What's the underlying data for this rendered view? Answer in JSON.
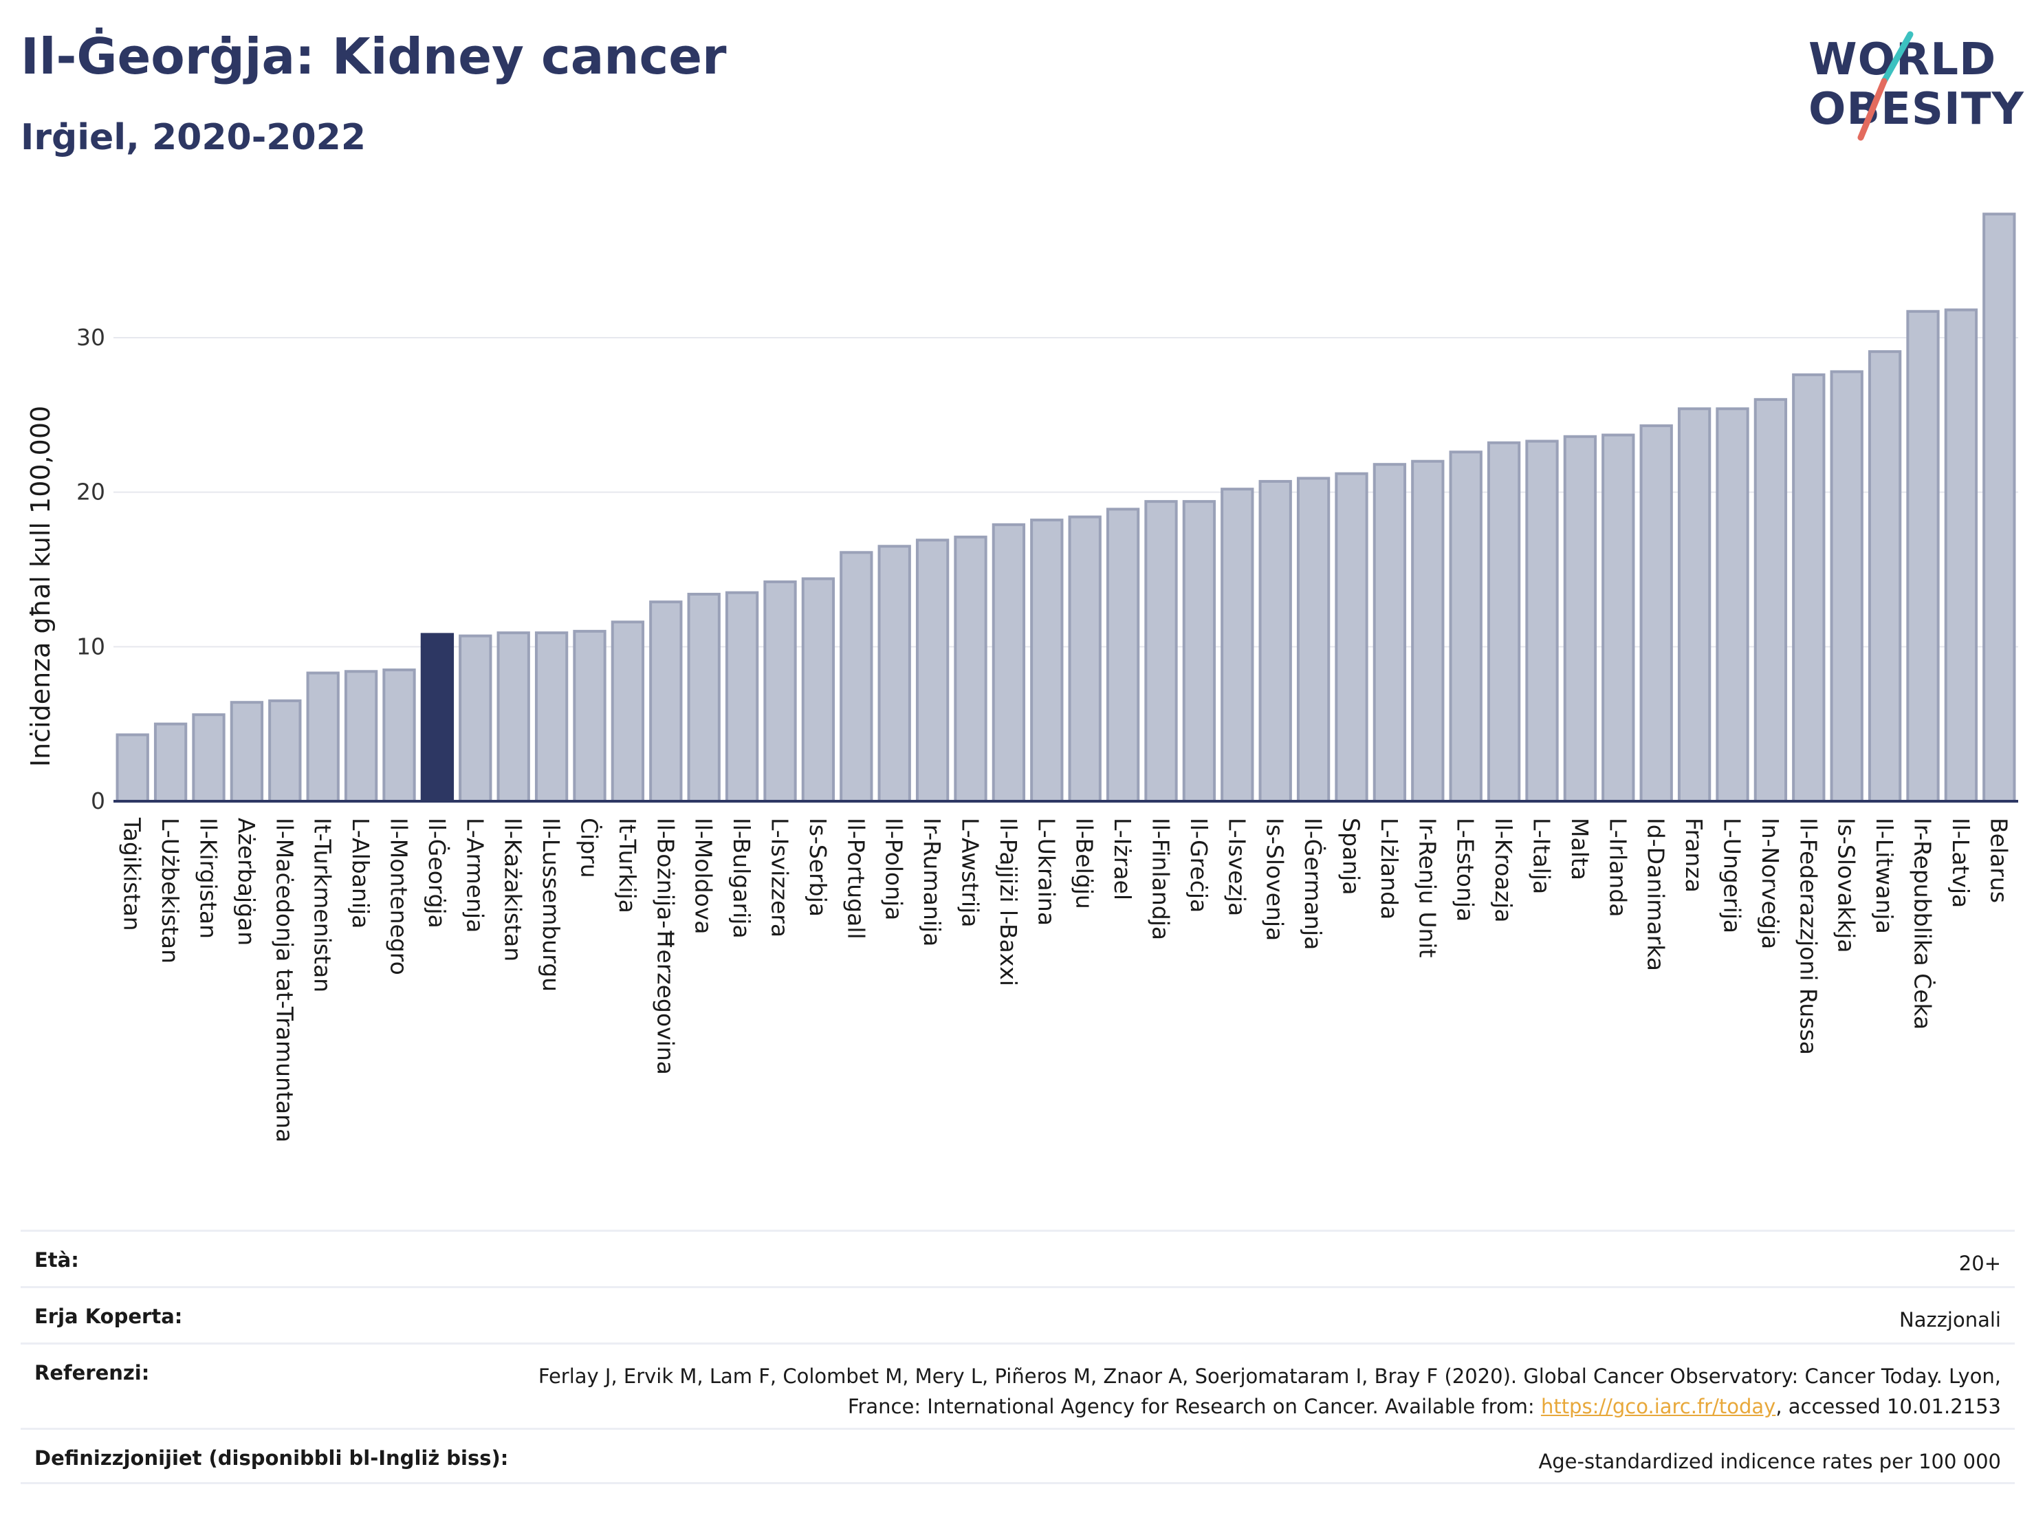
{
  "header": {
    "title": "Il-Ġeorġja: Kidney cancer",
    "subtitle": "Irġiel, 2020-2022"
  },
  "logo": {
    "line1": "WORLD",
    "line2": "OBESITY",
    "accent_colors": [
      "#3cc1c0",
      "#e36b5e"
    ]
  },
  "colors": {
    "bar": "#bcc2d2",
    "bar_stroke": "#9aa1b8",
    "highlight": "#2d3763",
    "axis": "#2d3763",
    "grid": "#e6e8ee",
    "link": "#e8a83a"
  },
  "chart_data": {
    "type": "bar",
    "ylabel": "Inċidenza għal kull 100,000",
    "xlabel": "",
    "ylim": [
      0,
      38.5
    ],
    "yticks": [
      0,
      10,
      20,
      30
    ],
    "grid": true,
    "highlight": "Il-Ġeorġja",
    "categories": [
      "Taġikistan",
      "L-Użbekistan",
      "Il-Kirgistan",
      "Ażerbajġan",
      "Il-Maċedonja tat-Tramuntana",
      "It-Turkmenistan",
      "L-Albanija",
      "Il-Montenegro",
      "Il-Ġeorġja",
      "L-Armenja",
      "Il-Każakistan",
      "Il-Lussemburgu",
      "Ċipru",
      "It-Turkija",
      "Il-Bożnija-Ħerzegovina",
      "Il-Moldova",
      "Il-Bulgarija",
      "L-Isvizzera",
      "Is-Serbja",
      "Il-Portugall",
      "Il-Polonja",
      "Ir-Rumanija",
      "L-Awstrija",
      "Il-Pajjiżi l-Baxxi",
      "L-Ukraina",
      "Il-Belġju",
      "L-Iżrael",
      "Il-Finlandja",
      "Il-Greċja",
      "L-Isvezja",
      "Is-Slovenja",
      "Il-Ġermanja",
      "Spanja",
      "L-Iżlanda",
      "Ir-Renju Unit",
      "L-Estonja",
      "Il-Kroazja",
      "L-Italja",
      "Malta",
      "L-Irlanda",
      "Id-Danimarka",
      "Franza",
      "L-Ungerija",
      "In-Norveġja",
      "Il-Federazzjoni Russa",
      "Is-Slovakkja",
      "Il-Litwanja",
      "Ir-Repubblika Ċeka",
      "Il-Latvja",
      "Belarus"
    ],
    "values": [
      4.3,
      5.0,
      5.6,
      6.4,
      6.5,
      8.3,
      8.4,
      8.5,
      10.8,
      10.7,
      10.9,
      10.9,
      11.0,
      11.6,
      12.9,
      13.4,
      13.5,
      14.2,
      14.4,
      16.1,
      16.5,
      16.9,
      17.1,
      17.9,
      18.2,
      18.4,
      18.9,
      19.4,
      19.4,
      20.2,
      20.7,
      20.9,
      21.2,
      21.8,
      22.0,
      22.6,
      23.2,
      23.3,
      23.6,
      23.7,
      24.3,
      25.4,
      25.4,
      26.0,
      27.6,
      27.8,
      29.1,
      31.7,
      31.8,
      38.0
    ]
  },
  "footer": {
    "age_label": "Età:",
    "age_value": "20+",
    "area_label": "Erja Koperta:",
    "area_value": "Nazzjonali",
    "ref_label": "Referenzi:",
    "ref_text": "Ferlay J, Ervik M, Lam F, Colombet M, Mery L, Piñeros M, Znaor A, Soerjomataram I, Bray F (2020). Global Cancer Observatory: Cancer Today. Lyon, France: International Agency for Research on Cancer. Available from: ",
    "ref_link": "https://gco.iarc.fr/today",
    "ref_suffix": ", accessed 10.01.2153",
    "def_label": "Definizzjonijiet (disponibbli bl-Ingliż biss):",
    "def_value": "Age-standardized indicence rates per 100 000"
  }
}
